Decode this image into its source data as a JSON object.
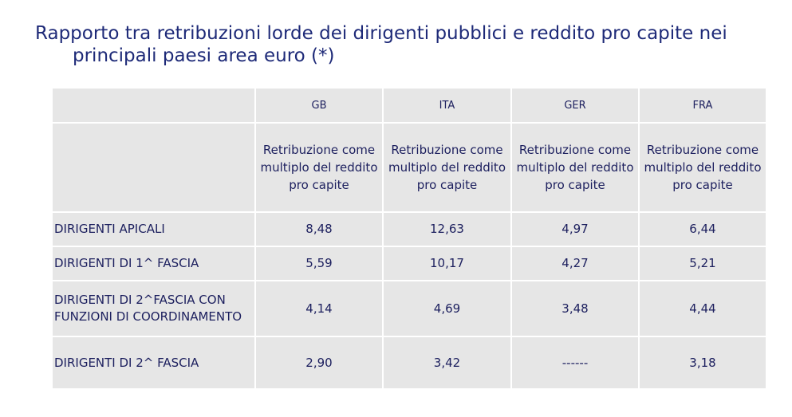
{
  "title": {
    "line1": "Rapporto tra retribuzioni lorde dei dirigenti pubblici e reddito pro capite nei",
    "line2": "principali paesi area euro (*)"
  },
  "table": {
    "columns": [
      "GB",
      "ITA",
      "GER",
      "FRA"
    ],
    "subheaders": [
      "Retribuzione come multiplo del reddito pro capite",
      "Retribuzione come multiplo del reddito pro capite",
      "Retribuzione come multiplo del reddito pro capite",
      "Retribuzione come multiplo del reddito pro capite"
    ],
    "rows": [
      {
        "label": "DIRIGENTI APICALI",
        "values": [
          "8,48",
          "12,63",
          "4,97",
          "6,44"
        ]
      },
      {
        "label": "DIRIGENTI DI 1^ FASCIA",
        "values": [
          "5,59",
          "10,17",
          "4,27",
          "5,21"
        ]
      },
      {
        "label": "DIRIGENTI DI 2^FASCIA CON FUNZIONI DI COORDINAMENTO",
        "values": [
          "4,14",
          "4,69",
          "3,48",
          "4,44"
        ]
      },
      {
        "label": "DIRIGENTI DI 2^ FASCIA",
        "values": [
          "2,90",
          "3,42",
          "------",
          "3,18"
        ]
      }
    ]
  }
}
